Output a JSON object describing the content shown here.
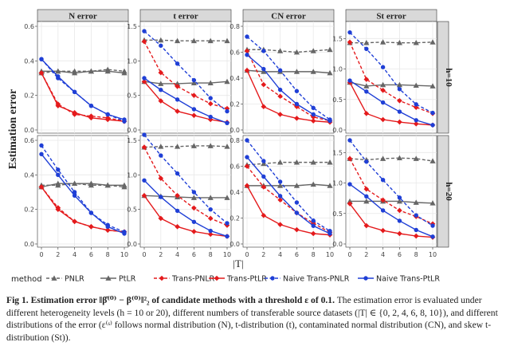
{
  "caption": {
    "lead": "Fig 1. Estimation error ",
    "formula": "‖β̂⁽⁰⁾ − β⁽⁰⁾‖²₂",
    "lead_tail": " of candidate methods with a threshold ",
    "threshold": "ε of 0.1.",
    "body": " The estimation error is evaluated under different heterogeneity levels (h = 10 or 20), different numbers of transferable source datasets (|T| ∈ {0, 2, 4, 6, 8, 10}), and different distributions of the error (ε⁽ˢ⁾ follows normal distribution (N), t-distribution (t), contaminated normal distribution (CN), and skew t-distribution (St))."
  },
  "colors": {
    "PNLR": "#666666",
    "PtLR": "#666666",
    "Trans-PNLR": "#e41a1c",
    "Trans-PtLR": "#e41a1c",
    "Naive Trans-PNLR": "#1f3fd6",
    "Naive Trans-PtLR": "#1f3fd6",
    "strip_bg": "#d9d9d9",
    "panel_bg": "#ffffff",
    "grid": "#e8e8e8"
  },
  "chart_data": {
    "type": "line",
    "ylabel": "Estimation error",
    "xlabel": "|T|",
    "x": [
      0,
      2,
      4,
      6,
      8,
      10
    ],
    "x_ticks": [
      "0",
      "2",
      "4",
      "6",
      "8",
      "10"
    ],
    "columns": [
      "N error",
      "t error",
      "CN error",
      "St error"
    ],
    "rows": [
      "h=10",
      "h=20"
    ],
    "legend_title": "method",
    "legend": [
      {
        "name": "PNLR",
        "dash": true,
        "marker": "triangle"
      },
      {
        "name": "PtLR",
        "dash": false,
        "marker": "triangle"
      },
      {
        "name": "Trans-PNLR",
        "dash": true,
        "marker": "diamond"
      },
      {
        "name": "Trans-PtLR",
        "dash": false,
        "marker": "diamond"
      },
      {
        "name": "Naive Trans-PNLR",
        "dash": true,
        "marker": "circle"
      },
      {
        "name": "Naive Trans-PtLR",
        "dash": false,
        "marker": "circle"
      }
    ],
    "row_scales": [
      {
        "ylims": [
          [
            0,
            0.6
          ],
          [
            0,
            1.5
          ],
          [
            0,
            0.8
          ],
          [
            0,
            1.7
          ]
        ],
        "yticks": [
          [
            "0.0",
            "0.2",
            "0.4",
            "0.6"
          ],
          [
            "0.0",
            "0.5",
            "1.0",
            "1.5"
          ],
          [
            "0.0",
            "0.2",
            "0.4",
            "0.6",
            "0.8"
          ],
          [
            "0.0",
            "0.5",
            "1.0",
            "1.5"
          ]
        ]
      },
      {
        "ylims": [
          [
            0,
            0.6
          ],
          [
            0,
            1.5
          ],
          [
            0,
            0.8
          ],
          [
            0,
            1.7
          ]
        ],
        "yticks": [
          [
            "0.0",
            "0.2",
            "0.4",
            "0.6"
          ],
          [
            "0.0",
            "0.5",
            "1.0",
            "1.5"
          ],
          [
            "0.0",
            "0.2",
            "0.4",
            "0.6",
            "0.8"
          ],
          [
            "0.0",
            "0.5",
            "1.0",
            "1.5"
          ]
        ]
      }
    ],
    "panels": [
      [
        {
          "PNLR": [
            0.33,
            0.34,
            0.34,
            0.34,
            0.35,
            0.34
          ],
          "PtLR": [
            0.34,
            0.34,
            0.33,
            0.34,
            0.34,
            0.33
          ],
          "Trans-PNLR": [
            0.33,
            0.15,
            0.09,
            0.08,
            0.07,
            0.05
          ],
          "Trans-PtLR": [
            0.33,
            0.14,
            0.1,
            0.07,
            0.06,
            0.05
          ],
          "Naive Trans-PNLR": [
            0.41,
            0.3,
            0.22,
            0.14,
            0.09,
            0.05
          ],
          "Naive Trans-PtLR": [
            0.41,
            0.31,
            0.22,
            0.14,
            0.09,
            0.06
          ]
        },
        {
          "PNLR": [
            1.3,
            1.3,
            1.29,
            1.29,
            1.29,
            1.29
          ],
          "PtLR": [
            0.7,
            0.67,
            0.67,
            0.68,
            0.68,
            0.7
          ],
          "Trans-PNLR": [
            1.28,
            0.83,
            0.63,
            0.5,
            0.38,
            0.31
          ],
          "Trans-PtLR": [
            0.7,
            0.42,
            0.27,
            0.21,
            0.15,
            0.11
          ],
          "Naive Trans-PNLR": [
            1.43,
            1.22,
            0.96,
            0.72,
            0.46,
            0.27
          ],
          "Naive Trans-PtLR": [
            0.75,
            0.58,
            0.44,
            0.3,
            0.19,
            0.1
          ]
        },
        {
          "PNLR": [
            0.62,
            0.62,
            0.61,
            0.6,
            0.61,
            0.62
          ],
          "PtLR": [
            0.46,
            0.45,
            0.45,
            0.45,
            0.45,
            0.44
          ],
          "Trans-PNLR": [
            0.61,
            0.35,
            0.26,
            0.18,
            0.1,
            0.07
          ],
          "Trans-PtLR": [
            0.46,
            0.18,
            0.12,
            0.09,
            0.07,
            0.06
          ],
          "Naive Trans-PNLR": [
            0.72,
            0.61,
            0.46,
            0.3,
            0.17,
            0.08
          ],
          "Naive Trans-PtLR": [
            0.58,
            0.47,
            0.31,
            0.2,
            0.12,
            0.07
          ]
        },
        {
          "PNLR": [
            1.43,
            1.43,
            1.44,
            1.43,
            1.43,
            1.44
          ],
          "PtLR": [
            0.78,
            0.72,
            0.74,
            0.74,
            0.73,
            0.72
          ],
          "Trans-PNLR": [
            1.44,
            0.83,
            0.65,
            0.48,
            0.37,
            0.27
          ],
          "Trans-PtLR": [
            0.78,
            0.27,
            0.17,
            0.13,
            0.1,
            0.08
          ],
          "Naive Trans-PNLR": [
            1.6,
            1.33,
            1.03,
            0.67,
            0.42,
            0.28
          ],
          "Naive Trans-PtLR": [
            0.81,
            0.63,
            0.45,
            0.3,
            0.16,
            0.08
          ]
        }
      ],
      [
        {
          "PNLR": [
            0.34,
            0.34,
            0.35,
            0.34,
            0.34,
            0.33
          ],
          "PtLR": [
            0.33,
            0.35,
            0.35,
            0.35,
            0.34,
            0.34
          ],
          "Trans-PNLR": [
            0.33,
            0.21,
            0.13,
            0.1,
            0.08,
            0.07
          ],
          "Trans-PtLR": [
            0.33,
            0.2,
            0.13,
            0.1,
            0.08,
            0.07
          ],
          "Naive Trans-PNLR": [
            0.57,
            0.43,
            0.3,
            0.18,
            0.11,
            0.07
          ],
          "Naive Trans-PtLR": [
            0.52,
            0.4,
            0.28,
            0.18,
            0.1,
            0.06
          ]
        },
        {
          "PNLR": [
            1.4,
            1.41,
            1.41,
            1.42,
            1.42,
            1.41
          ],
          "PtLR": [
            0.7,
            0.69,
            0.68,
            0.67,
            0.67,
            0.67
          ],
          "Trans-PNLR": [
            1.4,
            0.95,
            0.7,
            0.52,
            0.37,
            0.27
          ],
          "Trans-PtLR": [
            0.7,
            0.37,
            0.25,
            0.18,
            0.14,
            0.11
          ],
          "Naive Trans-PNLR": [
            1.58,
            1.28,
            1.02,
            0.75,
            0.5,
            0.3
          ],
          "Naive Trans-PtLR": [
            0.92,
            0.68,
            0.48,
            0.32,
            0.19,
            0.11
          ]
        },
        {
          "PNLR": [
            0.61,
            0.62,
            0.63,
            0.63,
            0.63,
            0.63
          ],
          "PtLR": [
            0.45,
            0.45,
            0.45,
            0.45,
            0.46,
            0.45
          ],
          "Trans-PNLR": [
            0.6,
            0.44,
            0.34,
            0.24,
            0.16,
            0.09
          ],
          "Trans-PtLR": [
            0.45,
            0.22,
            0.15,
            0.11,
            0.08,
            0.07
          ],
          "Naive Trans-PNLR": [
            0.8,
            0.64,
            0.48,
            0.32,
            0.18,
            0.1
          ],
          "Naive Trans-PtLR": [
            0.67,
            0.52,
            0.37,
            0.24,
            0.14,
            0.08
          ]
        },
        {
          "PNLR": [
            1.4,
            1.38,
            1.4,
            1.41,
            1.4,
            1.36
          ],
          "PtLR": [
            0.7,
            0.7,
            0.7,
            0.7,
            0.68,
            0.67
          ],
          "Trans-PNLR": [
            1.4,
            0.9,
            0.72,
            0.55,
            0.45,
            0.33
          ],
          "Trans-PtLR": [
            0.66,
            0.3,
            0.22,
            0.17,
            0.13,
            0.11
          ],
          "Naive Trans-PNLR": [
            1.7,
            1.35,
            1.05,
            0.76,
            0.47,
            0.3
          ],
          "Naive Trans-PtLR": [
            0.98,
            0.78,
            0.55,
            0.38,
            0.23,
            0.12
          ]
        }
      ]
    ]
  }
}
